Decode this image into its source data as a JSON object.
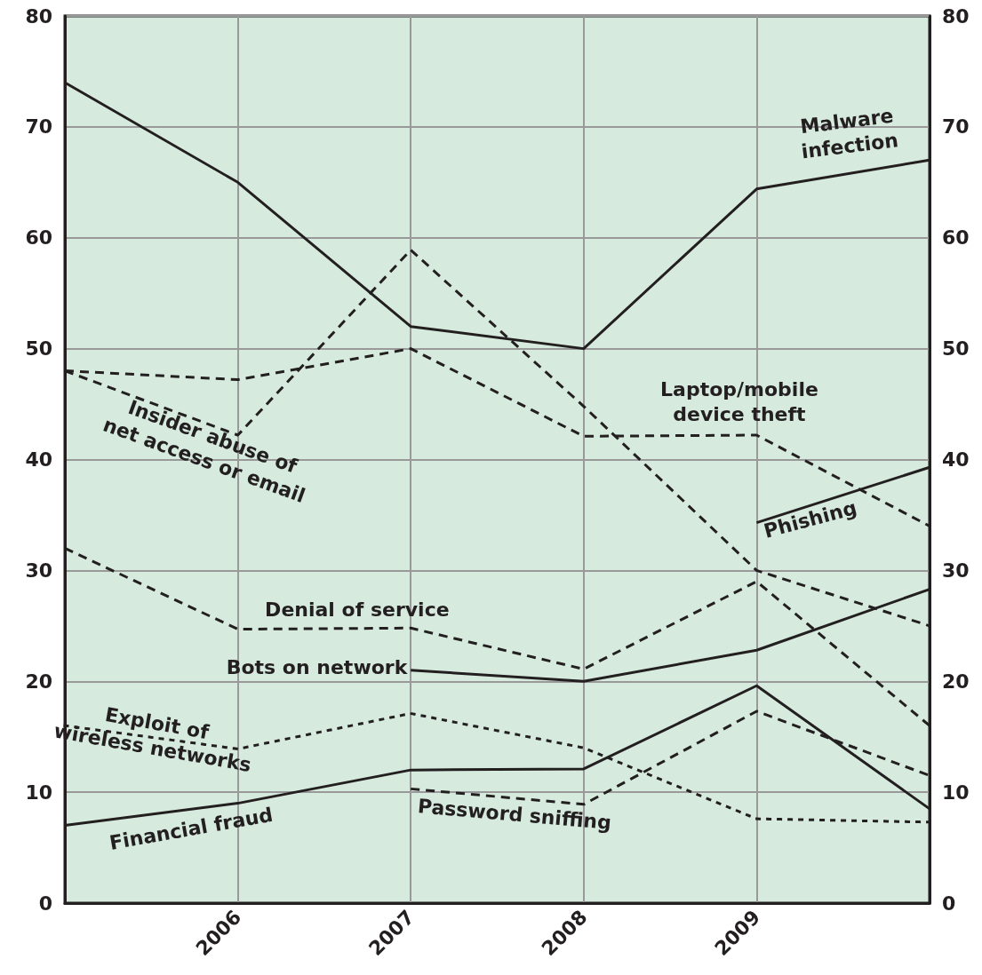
{
  "chart_data": {
    "type": "line",
    "x": [
      2005,
      2006,
      2007,
      2008,
      2009,
      2010
    ],
    "xlim": [
      2005,
      2010
    ],
    "xticks": [
      2006,
      2007,
      2008,
      2009
    ],
    "ylim": [
      0,
      80
    ],
    "yticks": [
      0,
      10,
      20,
      30,
      40,
      50,
      60,
      70,
      80
    ],
    "y2lim": [
      0,
      80
    ],
    "y2ticks": [
      0,
      10,
      20,
      30,
      40,
      50,
      60,
      70,
      80
    ],
    "grid": true,
    "legend": false,
    "marker": "none",
    "series": [
      {
        "name": "Malware\ninfection",
        "color": "#231f20",
        "line_style": "solid",
        "values": [
          74,
          65,
          52,
          50,
          64.4,
          67
        ]
      },
      {
        "name": "Insider abuse of\nnet access or email",
        "color": "#231f20",
        "line_style": "dashed",
        "values": [
          48,
          42.2,
          58.9,
          44.8,
          30,
          25
        ]
      },
      {
        "name": "Laptop/mobile\ndevice theft",
        "color": "#231f20",
        "line_style": "dashed",
        "values": [
          48,
          47.2,
          50,
          42.1,
          42.2,
          34
        ]
      },
      {
        "name": "Phishing",
        "color": "#231f20",
        "line_style": "solid",
        "values": [
          null,
          null,
          null,
          null,
          34.3,
          39.3
        ]
      },
      {
        "name": "Denial of service",
        "color": "#231f20",
        "line_style": "dashed",
        "values": [
          32,
          24.7,
          24.8,
          21.1,
          29,
          16
        ]
      },
      {
        "name": "Bots on network",
        "color": "#231f20",
        "line_style": "solid",
        "values": [
          null,
          null,
          21,
          20,
          22.8,
          28.3
        ]
      },
      {
        "name": "Exploit of\nwireless networks",
        "color": "#231f20",
        "line_style": "dotted",
        "values": [
          16,
          13.9,
          17.1,
          14,
          7.6,
          7.3
        ]
      },
      {
        "name": "Financial fraud",
        "color": "#231f20",
        "line_style": "solid",
        "values": [
          7,
          9,
          12,
          12.1,
          19.6,
          8.5
        ]
      },
      {
        "name": "Password sniffing",
        "color": "#231f20",
        "line_style": "dashed",
        "values": [
          null,
          null,
          10.3,
          8.9,
          17.3,
          11.5
        ]
      }
    ]
  }
}
